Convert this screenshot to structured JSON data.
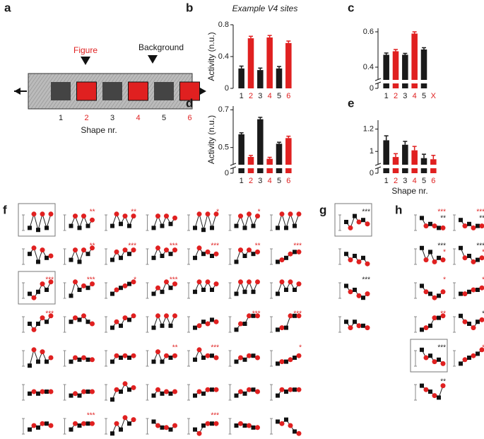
{
  "panel_a": {
    "label": "a",
    "figure": "Figure",
    "background": "Background",
    "shapes": [
      "1",
      "2",
      "3",
      "4",
      "5",
      "6"
    ],
    "xlabel": "Shape nr."
  },
  "chart_data": [
    {
      "type": "bar",
      "label": "b",
      "title": "Example V4 sites",
      "ylabel": "Activity (n.u.)",
      "categories": [
        "1",
        "2",
        "3",
        "4",
        "5",
        "6"
      ],
      "values": [
        0.25,
        0.63,
        0.23,
        0.64,
        0.25,
        0.57
      ],
      "errors": [
        0.03,
        0.025,
        0.025,
        0.025,
        0.025,
        0.025
      ],
      "colors": [
        "#1a1a1a",
        "#e02020",
        "#1a1a1a",
        "#e02020",
        "#1a1a1a",
        "#e02020"
      ],
      "ylim": [
        0,
        0.8
      ],
      "yticks": [
        0,
        0.4,
        0.8
      ]
    },
    {
      "type": "bar",
      "label": "c",
      "categories": [
        "1",
        "2",
        "3",
        "4",
        "5",
        "X"
      ],
      "values": [
        0.47,
        0.49,
        0.47,
        0.59,
        0.5,
        null
      ],
      "errors": [
        0.01,
        0.01,
        0.008,
        0.01,
        0.01,
        null
      ],
      "colors": [
        "#1a1a1a",
        "#e02020",
        "#1a1a1a",
        "#e02020",
        "#1a1a1a",
        "#e02020"
      ],
      "ylim": [
        0.34,
        0.62
      ],
      "yticks": [
        0.4,
        0.6
      ],
      "break_tick": 0
    },
    {
      "type": "bar",
      "label": "d",
      "ylabel": "Activity (n.u.)",
      "categories": [
        "1",
        "2",
        "3",
        "4",
        "5",
        "6"
      ],
      "values": [
        0.57,
        0.45,
        0.65,
        0.44,
        0.52,
        0.55
      ],
      "errors": [
        0.008,
        0.008,
        0.01,
        0.008,
        0.008,
        0.01
      ],
      "colors": [
        "#1a1a1a",
        "#e02020",
        "#1a1a1a",
        "#e02020",
        "#1a1a1a",
        "#e02020"
      ],
      "ylim": [
        0.42,
        0.72
      ],
      "yticks": [
        0.5,
        0.7
      ],
      "break_tick": 0
    },
    {
      "type": "bar",
      "label": "e",
      "xlabel": "Shape nr.",
      "categories": [
        "1",
        "2",
        "3",
        "4",
        "5",
        "6"
      ],
      "values": [
        1.1,
        0.95,
        1.06,
        1.01,
        0.94,
        0.93
      ],
      "errors": [
        0.04,
        0.03,
        0.03,
        0.035,
        0.035,
        0.035
      ],
      "colors": [
        "#1a1a1a",
        "#e02020",
        "#1a1a1a",
        "#e02020",
        "#1a1a1a",
        "#e02020"
      ],
      "ylim": [
        0.9,
        1.28
      ],
      "yticks": [
        1,
        1.2
      ],
      "break_tick": 0
    },
    {
      "type": "line",
      "label": "f",
      "plots": [
        {
          "values": [
            0.2,
            0.9,
            0.1,
            0.9,
            0.2,
            0.9
          ],
          "boxed": true,
          "stars": []
        },
        {
          "values": [
            0.3,
            0.8,
            0.2,
            0.8,
            0.3,
            0.6
          ],
          "stars": [
            {
              "text": "**",
              "color": "#e02020"
            }
          ]
        },
        {
          "values": [
            0.3,
            0.9,
            0.4,
            0.8,
            0.3,
            0.8
          ],
          "stars": [
            {
              "text": "**",
              "color": "#e02020"
            }
          ]
        },
        {
          "values": [
            0.2,
            0.8,
            0.3,
            0.8,
            0.4,
            0.7
          ],
          "stars": []
        },
        {
          "values": [
            0.2,
            0.9,
            0.1,
            0.9,
            0.2,
            0.9
          ],
          "stars": [
            {
              "text": "*",
              "color": "#e02020"
            }
          ]
        },
        {
          "values": [
            0.3,
            0.8,
            0.2,
            0.9,
            0.3,
            0.8
          ],
          "stars": [
            {
              "text": "*",
              "color": "#e02020"
            }
          ]
        },
        {
          "values": [
            0.2,
            0.9,
            0.2,
            0.9,
            0.3,
            0.9
          ],
          "stars": []
        },
        {
          "values": [
            0.6,
            0.9,
            0.2,
            0.8,
            0.4,
            0.5
          ],
          "stars": []
        },
        {
          "values": [
            0.3,
            0.8,
            0.2,
            0.8,
            0.6,
            0.9
          ],
          "stars": [
            {
              "text": "**",
              "color": "#e02020"
            }
          ]
        },
        {
          "values": [
            0.3,
            0.7,
            0.4,
            0.8,
            0.6,
            0.8
          ],
          "stars": [
            {
              "text": "***",
              "color": "#e02020"
            }
          ]
        },
        {
          "values": [
            0.4,
            0.9,
            0.5,
            0.8,
            0.6,
            0.8
          ],
          "stars": [
            {
              "text": "***",
              "color": "#e02020"
            }
          ]
        },
        {
          "values": [
            0.4,
            0.9,
            0.6,
            0.7,
            0.5,
            0.6
          ],
          "stars": [
            {
              "text": "***",
              "color": "#e02020"
            }
          ]
        },
        {
          "values": [
            0.2,
            0.8,
            0.5,
            0.8,
            0.6,
            0.7
          ],
          "stars": [
            {
              "text": "**",
              "color": "#e02020"
            }
          ]
        },
        {
          "values": [
            0.2,
            0.3,
            0.4,
            0.6,
            0.7,
            0.7
          ],
          "stars": [
            {
              "text": "***",
              "color": "#e02020"
            }
          ]
        },
        {
          "values": [
            0.3,
            0.1,
            0.4,
            0.8,
            0.5,
            0.9
          ],
          "boxed": true,
          "stars": [
            {
              "text": "***",
              "color": "#e02020"
            }
          ]
        },
        {
          "values": [
            0.2,
            0.9,
            0.5,
            0.7,
            0.6,
            0.8
          ],
          "stars": [
            {
              "text": "***",
              "color": "#e02020"
            }
          ]
        },
        {
          "values": [
            0.3,
            0.5,
            0.6,
            0.7,
            0.8,
            0.9
          ],
          "stars": [
            {
              "text": "*",
              "color": "#e02020"
            }
          ]
        },
        {
          "values": [
            0.3,
            0.6,
            0.4,
            0.9,
            0.6,
            0.8
          ],
          "stars": [
            {
              "text": "***",
              "color": "#e02020"
            }
          ]
        },
        {
          "values": [
            0.4,
            0.9,
            0.5,
            0.9,
            0.5,
            0.8
          ],
          "stars": []
        },
        {
          "values": [
            0.3,
            0.9,
            0.4,
            0.9,
            0.4,
            0.9
          ],
          "stars": []
        },
        {
          "values": [
            0.3,
            0.9,
            0.5,
            0.9,
            0.5,
            0.8
          ],
          "stars": []
        },
        {
          "values": [
            0.5,
            0.2,
            0.5,
            0.8,
            0.6,
            0.9
          ],
          "stars": [
            {
              "text": "***",
              "color": "#e02020"
            }
          ]
        },
        {
          "values": [
            0.6,
            0.8,
            0.7,
            0.9,
            0.6,
            0.5
          ],
          "stars": []
        },
        {
          "values": [
            0.3,
            0.6,
            0.4,
            0.8,
            0.7,
            0.9
          ],
          "stars": []
        },
        {
          "values": [
            0.3,
            0.9,
            0.4,
            0.9,
            0.4,
            0.9
          ],
          "stars": []
        },
        {
          "values": [
            0.3,
            0.4,
            0.6,
            0.5,
            0.7,
            0.6
          ],
          "stars": []
        },
        {
          "values": [
            0.2,
            0.5,
            0.5,
            0.9,
            0.9,
            0.9
          ],
          "stars": [
            {
              "text": "***",
              "color": "#e02020"
            }
          ]
        },
        {
          "values": [
            0.2,
            0.3,
            0.3,
            0.9,
            0.9,
            0.9
          ],
          "stars": [
            {
              "text": "***",
              "color": "#e02020"
            }
          ]
        },
        {
          "values": [
            0.1,
            0.9,
            0.3,
            0.8,
            0.3,
            0.5
          ],
          "stars": []
        },
        {
          "values": [
            0.3,
            0.5,
            0.4,
            0.5,
            0.4,
            0.4
          ],
          "stars": []
        },
        {
          "values": [
            0.3,
            0.6,
            0.5,
            0.6,
            0.5,
            0.6
          ],
          "stars": []
        },
        {
          "values": [
            0.3,
            0.8,
            0.3,
            0.6,
            0.5,
            0.6
          ],
          "stars": [
            {
              "text": "**",
              "color": "#e02020"
            }
          ]
        },
        {
          "values": [
            0.4,
            0.9,
            0.5,
            0.6,
            0.6,
            0.5
          ],
          "stars": [
            {
              "text": "***",
              "color": "#e02020"
            }
          ]
        },
        {
          "values": [
            0.3,
            0.5,
            0.4,
            0.6,
            0.6,
            0.5
          ],
          "stars": []
        },
        {
          "values": [
            0.2,
            0.3,
            0.3,
            0.4,
            0.5,
            0.6
          ],
          "stars": [
            {
              "text": "*",
              "color": "#e02020"
            }
          ]
        },
        {
          "values": [
            0.4,
            0.5,
            0.4,
            0.5,
            0.5,
            0.5
          ],
          "stars": []
        },
        {
          "values": [
            0.3,
            0.4,
            0.3,
            0.5,
            0.5,
            0.5
          ],
          "stars": []
        },
        {
          "values": [
            0.1,
            0.6,
            0.5,
            0.9,
            0.6,
            0.7
          ],
          "stars": []
        },
        {
          "values": [
            0.3,
            0.6,
            0.4,
            0.5,
            0.4,
            0.5
          ],
          "stars": []
        },
        {
          "values": [
            0.3,
            0.5,
            0.4,
            0.6,
            0.6,
            0.6
          ],
          "stars": []
        },
        {
          "values": [
            0.3,
            0.5,
            0.4,
            0.6,
            0.6,
            0.5
          ],
          "stars": []
        },
        {
          "values": [
            0.3,
            0.6,
            0.5,
            0.6,
            0.6,
            0.6
          ],
          "stars": []
        },
        {
          "values": [
            0.3,
            0.5,
            0.4,
            0.6,
            0.6,
            0.5
          ],
          "stars": []
        },
        {
          "values": [
            0.3,
            0.6,
            0.5,
            0.6,
            0.6,
            0.6
          ],
          "stars": [
            {
              "text": "***",
              "color": "#e02020"
            }
          ]
        },
        {
          "values": [
            0.1,
            0.6,
            0.3,
            0.9,
            0.6,
            0.8
          ],
          "stars": []
        },
        {
          "values": [
            0.7,
            0.5,
            0.4,
            0.4,
            0.3,
            0.5
          ],
          "stars": []
        },
        {
          "values": [
            0.3,
            0.1,
            0.5,
            0.6,
            0.6,
            0.6
          ],
          "stars": [
            {
              "text": "***",
              "color": "#e02020"
            }
          ]
        },
        {
          "values": [
            0.5,
            0.6,
            0.5,
            0.5,
            0.4,
            0.4
          ],
          "stars": []
        },
        {
          "values": [
            0.7,
            0.6,
            0.8,
            0.5,
            0.2,
            0.1
          ],
          "stars": []
        }
      ]
    },
    {
      "type": "line",
      "label": "g",
      "plots": [
        {
          "values": [
            0.5,
            0.2,
            0.8,
            0.5,
            0.6,
            0.4
          ],
          "boxed": true,
          "stars": [
            {
              "text": "***",
              "color": "#1a1a1a"
            }
          ]
        },
        {
          "values": [
            0.6,
            0.3,
            0.5,
            0.2,
            0.4,
            0.1
          ],
          "stars": []
        },
        {
          "values": [
            0.7,
            0.4,
            0.5,
            0.2,
            0.1,
            0.3
          ],
          "stars": [
            {
              "text": "***",
              "color": "#1a1a1a"
            }
          ]
        },
        {
          "values": [
            0.6,
            0.3,
            0.6,
            0.4,
            0.4,
            0.3
          ],
          "stars": []
        }
      ]
    },
    {
      "type": "line",
      "label": "h",
      "plots": [
        {
          "values": [
            0.7,
            0.3,
            0.4,
            0.3,
            0.2,
            0.2
          ],
          "stars": [
            {
              "text": "***",
              "color": "#e02020"
            },
            {
              "text": "**",
              "color": "#1a1a1a"
            }
          ]
        },
        {
          "values": [
            0.6,
            0.3,
            0.4,
            0.2,
            0.3,
            0.3
          ],
          "stars": [
            {
              "text": "***",
              "color": "#e02020"
            },
            {
              "text": "**",
              "color": "#1a1a1a"
            }
          ]
        },
        {
          "values": [
            0.9,
            0.3,
            0.7,
            0.2,
            0.4,
            0.3
          ],
          "stars": [
            {
              "text": "***",
              "color": "#1a1a1a"
            },
            {
              "text": "*",
              "color": "#e02020"
            }
          ]
        },
        {
          "values": [
            0.9,
            0.4,
            0.5,
            0.2,
            0.3,
            0.4
          ],
          "stars": [
            {
              "text": "***",
              "color": "#1a1a1a"
            },
            {
              "text": "*",
              "color": "#e02020"
            }
          ]
        },
        {
          "values": [
            0.7,
            0.4,
            0.3,
            0.1,
            0.2,
            0.4
          ],
          "stars": [
            {
              "text": "*",
              "color": "#e02020"
            }
          ]
        },
        {
          "values": [
            0.3,
            0.3,
            0.4,
            0.5,
            0.5,
            0.6
          ],
          "stars": [
            {
              "text": "*",
              "color": "#e02020"
            }
          ]
        },
        {
          "values": [
            0.2,
            0.3,
            0.4,
            0.8,
            0.8,
            0.9
          ],
          "stars": [
            {
              "text": "**",
              "color": "#e02020"
            }
          ]
        },
        {
          "values": [
            0.9,
            0.6,
            0.5,
            0.3,
            0.6,
            0.7
          ],
          "stars": [
            {
              "text": "*",
              "color": "#1a1a1a"
            }
          ]
        },
        {
          "values": [
            0.9,
            0.5,
            0.6,
            0.3,
            0.4,
            0.2
          ],
          "boxed": true,
          "stars": [
            {
              "text": "***",
              "color": "#1a1a1a"
            }
          ]
        },
        {
          "values": [
            0.2,
            0.4,
            0.5,
            0.6,
            0.7,
            0.9
          ],
          "stars": [
            {
              "text": "*",
              "color": "#e02020"
            }
          ]
        },
        {
          "values": [
            0.8,
            0.6,
            0.5,
            0.3,
            0.2,
            0.8
          ],
          "stars": [
            {
              "text": "**",
              "color": "#1a1a1a"
            }
          ]
        }
      ]
    }
  ]
}
